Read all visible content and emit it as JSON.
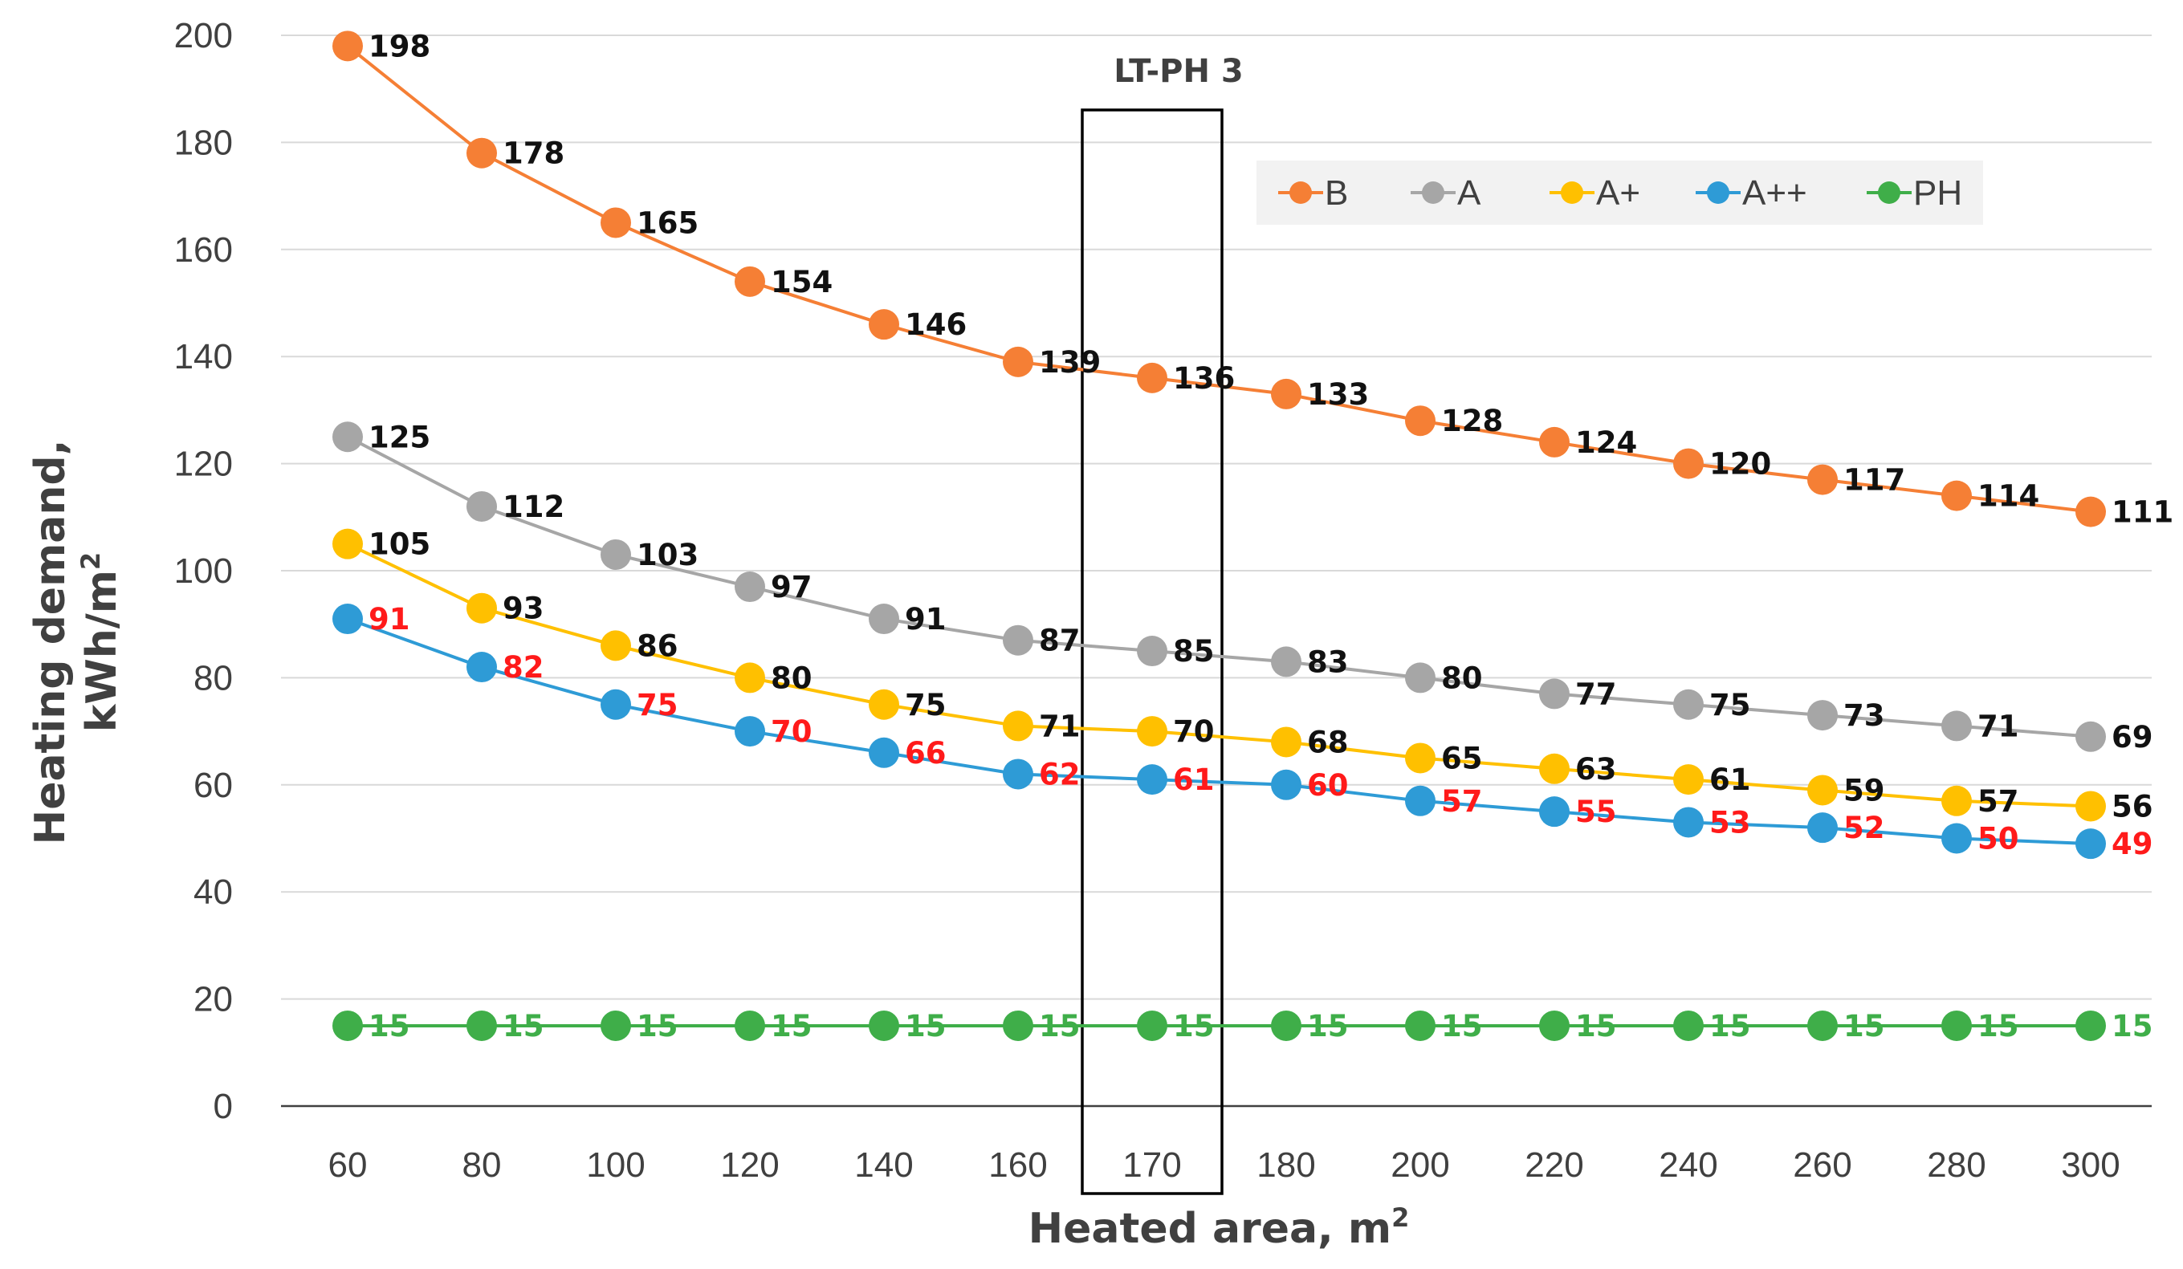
{
  "chart_data": {
    "type": "line",
    "title": "",
    "xlabel": "Heated area, m",
    "xlabel_sup": "2",
    "ylabel_line1": "Heating demand,",
    "ylabel_line2": "kWh/m",
    "ylabel_sup": "2",
    "categories": [
      "60",
      "80",
      "100",
      "120",
      "140",
      "160",
      "170",
      "180",
      "200",
      "220",
      "240",
      "260",
      "280",
      "300"
    ],
    "y_ticks": [
      "0",
      "20",
      "40",
      "60",
      "80",
      "100",
      "120",
      "140",
      "160",
      "180",
      "200"
    ],
    "ylim": [
      0,
      200
    ],
    "grid": true,
    "legend_position": "top-right",
    "annotation": {
      "text": "LT-PH 3",
      "highlight_category": "170"
    },
    "series": [
      {
        "name": "B",
        "color": "#f57f35",
        "label_color": "#111111",
        "values": [
          198,
          178,
          165,
          154,
          146,
          139,
          136,
          133,
          128,
          124,
          120,
          117,
          114,
          111
        ],
        "labels": [
          "198",
          "178",
          "165",
          "154",
          "146",
          "139",
          "136",
          "133",
          "128",
          "124",
          "120",
          "117",
          "114",
          "111"
        ]
      },
      {
        "name": "A",
        "color": "#a6a6a6",
        "label_color": "#111111",
        "values": [
          125,
          112,
          103,
          97,
          91,
          87,
          85,
          83,
          80,
          77,
          75,
          73,
          71,
          69
        ],
        "labels": [
          "125",
          "112",
          "103",
          "97",
          "91",
          "87",
          "85",
          "83",
          "80",
          "77",
          "75",
          "73",
          "71",
          "69"
        ]
      },
      {
        "name": "A+",
        "color": "#ffc000",
        "label_color": "#111111",
        "values": [
          105,
          93,
          86,
          80,
          75,
          71,
          70,
          68,
          65,
          63,
          61,
          59,
          57,
          56
        ],
        "labels": [
          "105",
          "93",
          "86",
          "80",
          "75",
          "71",
          "70",
          "68",
          "65",
          "63",
          "61",
          "59",
          "57",
          "56"
        ]
      },
      {
        "name": "A++",
        "color": "#2e9bd6",
        "label_color": "#ff1a1a",
        "values": [
          91,
          82,
          75,
          70,
          66,
          62,
          61,
          60,
          57,
          55,
          53,
          52,
          50,
          49
        ],
        "labels": [
          "91",
          "82",
          "75",
          "70",
          "66",
          "62",
          "61",
          "60",
          "57",
          "55",
          "53",
          "52",
          "50",
          "49"
        ]
      },
      {
        "name": "PH",
        "color": "#3fae49",
        "label_color": "#3fae49",
        "values": [
          15,
          15,
          15,
          15,
          15,
          15,
          15,
          15,
          15,
          15,
          15,
          15,
          15,
          15
        ],
        "labels": [
          "15",
          "15",
          "15",
          "15",
          "15",
          "15",
          "15",
          "15",
          "15",
          "15",
          "15",
          "15",
          "15",
          "15"
        ]
      }
    ]
  }
}
